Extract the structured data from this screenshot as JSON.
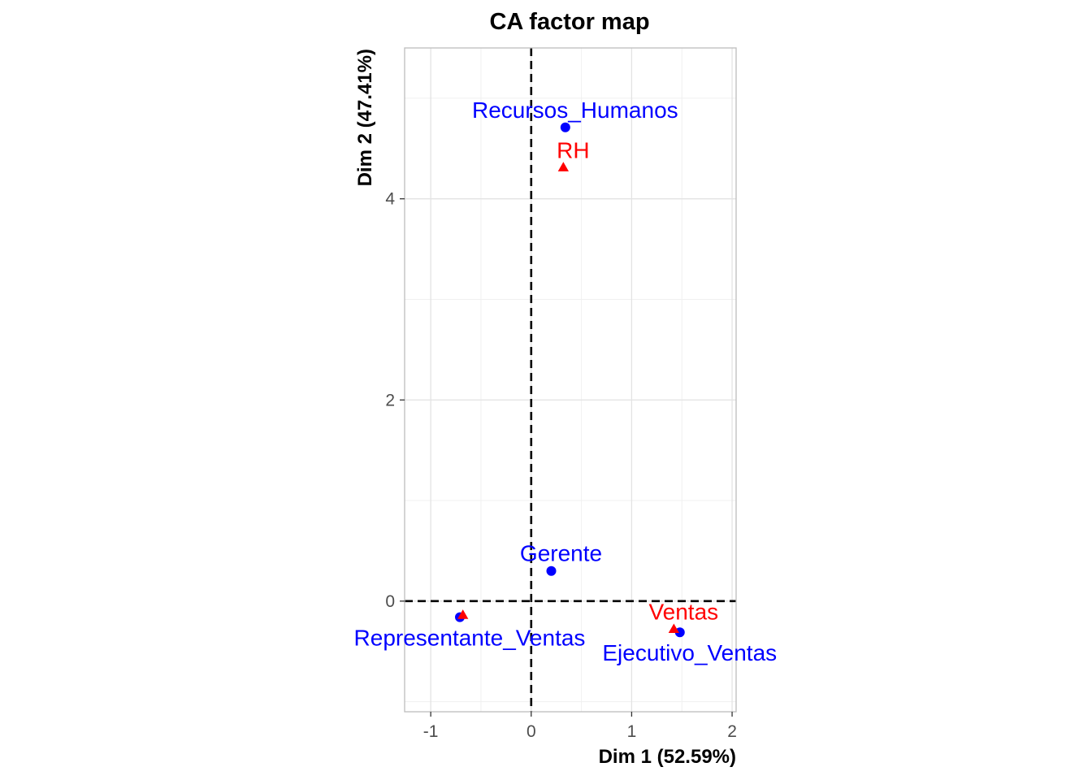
{
  "chart_data": {
    "type": "scatter",
    "title": "CA factor map",
    "xlabel": "Dim 1 (52.59%)",
    "ylabel": "Dim 2 (47.41%)",
    "xlim": [
      -1.26,
      2.04
    ],
    "ylim": [
      -1.1,
      5.5
    ],
    "x_ticks": [
      -1,
      0,
      1,
      2
    ],
    "x_tick_labels": [
      "-1",
      "0",
      "1",
      "2"
    ],
    "y_ticks": [
      0,
      2,
      4
    ],
    "y_tick_labels": [
      "0",
      "2",
      "4"
    ],
    "grid": true,
    "reference_lines": {
      "x": 0,
      "y": 0,
      "style": "dashed"
    },
    "colors": {
      "rows": "#0000ff",
      "columns": "#ff0000"
    },
    "series": [
      {
        "marker": "circle",
        "color": "#0000ff",
        "points": [
          {
            "label": "Recursos_Humanos",
            "x": 0.34,
            "y": 4.71,
            "label_position": "above"
          },
          {
            "label": "Gerente",
            "x": 0.2,
            "y": 0.3,
            "label_position": "above"
          },
          {
            "label": "Representante_Ventas",
            "x": -0.71,
            "y": -0.16,
            "label_position": "below"
          },
          {
            "label": "Ejecutivo_Ventas",
            "x": 1.48,
            "y": -0.31,
            "label_position": "below"
          }
        ]
      },
      {
        "marker": "triangle",
        "color": "#ff0000",
        "points": [
          {
            "label": "RH",
            "x": 0.32,
            "y": 4.31,
            "label_position": "above"
          },
          {
            "label": "Ventas",
            "x": 1.42,
            "y": -0.28,
            "label_position": "above"
          },
          {
            "label": "",
            "x": -0.68,
            "y": -0.14,
            "label_position": "none"
          }
        ]
      }
    ]
  }
}
